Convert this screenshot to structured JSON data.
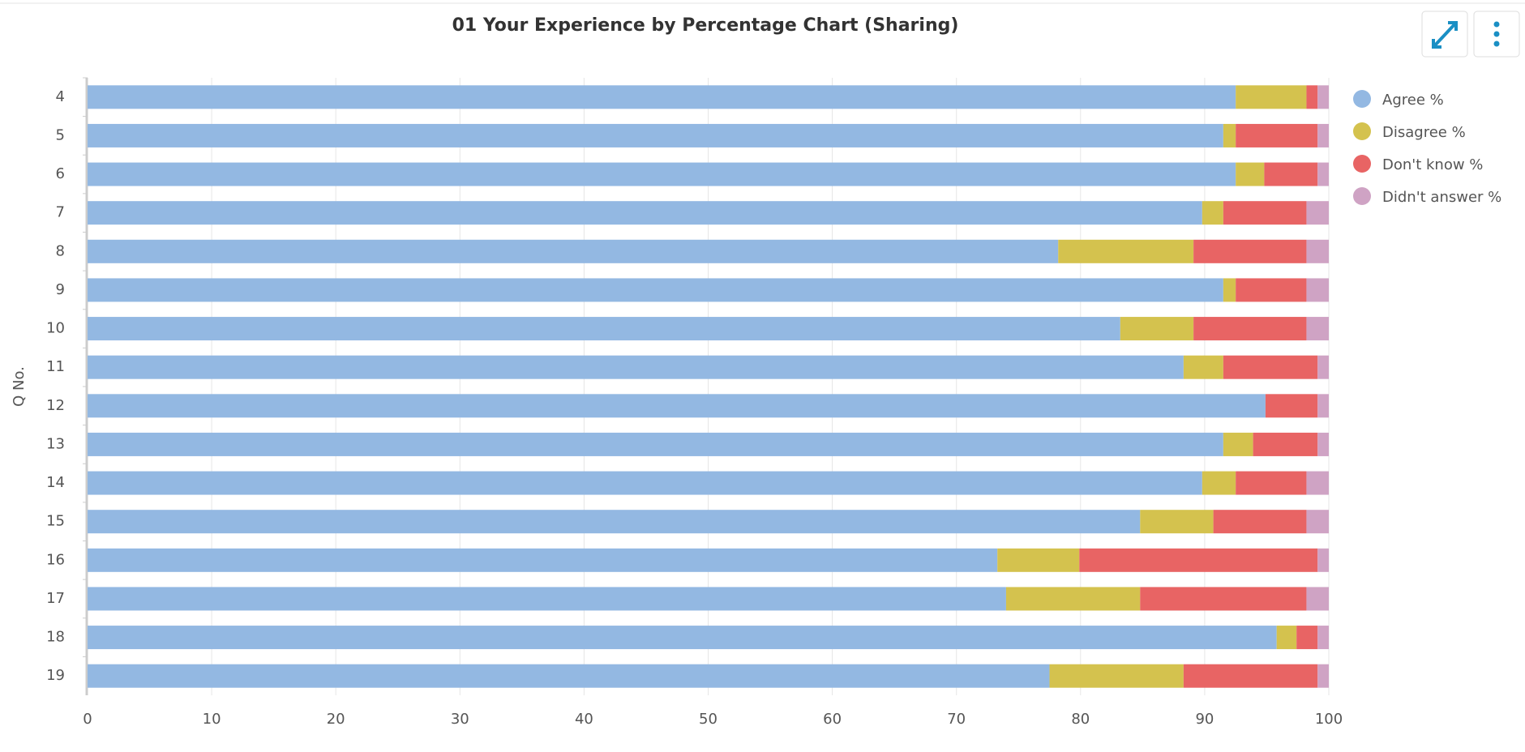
{
  "chart_data": {
    "type": "stacked-bar-horizontal",
    "title": "01 Your Experience by Percentage Chart (Sharing)",
    "y_label": "Q No.",
    "categories": [
      "4",
      "5",
      "6",
      "7",
      "8",
      "9",
      "10",
      "11",
      "12",
      "13",
      "14",
      "15",
      "16",
      "17",
      "18",
      "19"
    ],
    "series": [
      {
        "name": "Agree %",
        "color": "#93b8e2",
        "values": [
          92.5,
          91.5,
          92.5,
          89.8,
          78.2,
          91.5,
          83.2,
          88.3,
          94.9,
          91.5,
          89.8,
          84.8,
          73.3,
          74.0,
          95.8,
          77.5
        ]
      },
      {
        "name": "Disagree %",
        "color": "#d4c24e",
        "values": [
          5.7,
          1.0,
          2.3,
          1.7,
          10.9,
          1.0,
          5.9,
          3.2,
          0,
          2.4,
          2.7,
          5.9,
          6.6,
          10.8,
          1.6,
          10.8
        ]
      },
      {
        "name": "Don't know %",
        "color": "#e86464",
        "values": [
          0.9,
          6.6,
          4.3,
          6.7,
          9.1,
          5.7,
          9.1,
          7.6,
          4.2,
          5.2,
          5.7,
          7.5,
          19.2,
          13.4,
          1.7,
          10.8
        ]
      },
      {
        "name": "Didn't answer %",
        "color": "#cfa3c4",
        "values": [
          0.9,
          0.9,
          0.9,
          1.8,
          1.8,
          1.8,
          1.8,
          0.9,
          0.9,
          0.9,
          1.8,
          1.8,
          0.9,
          1.8,
          0.9,
          0.9
        ]
      }
    ],
    "xlim": [
      0,
      100
    ],
    "xticks": [
      0,
      10,
      20,
      30,
      40,
      50,
      60,
      70,
      80,
      90,
      100
    ],
    "grid": true,
    "legend": "right"
  }
}
